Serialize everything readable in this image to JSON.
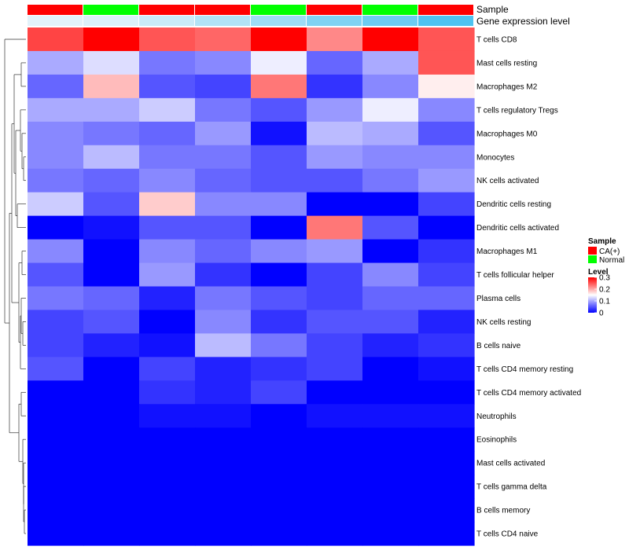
{
  "chart_data": {
    "type": "heatmap",
    "column_annotations": [
      {
        "name": "Sample",
        "values": [
          "CA(+)",
          "Normal",
          "CA(+)",
          "CA(+)",
          "Normal",
          "CA(+)",
          "Normal",
          "CA(+)"
        ]
      },
      {
        "name": "Gene expression level",
        "values": [
          0.02,
          0.05,
          0.12,
          0.22,
          0.3,
          0.42,
          0.5,
          0.62
        ]
      }
    ],
    "rows": [
      "T cells CD8",
      "Mast cells resting",
      "Macrophages M2",
      "T cells regulatory  Tregs",
      "Macrophages M0",
      "Monocytes",
      "NK cells activated",
      "Dendritic cells resting",
      "Dendritic cells activated",
      "Macrophages M1",
      "T cells follicular helper",
      "Plasma cells",
      "NK cells resting",
      "B cells naive",
      "T cells CD4 memory resting",
      "T cells CD4 memory activated",
      "Neutrophils",
      "Eosinophils",
      "Mast cells activated",
      "T cells gamma delta",
      "B cells memory",
      "T cells CD4 naive"
    ],
    "values": [
      [
        0.26,
        0.3,
        0.25,
        0.24,
        0.3,
        0.22,
        0.3,
        0.25
      ],
      [
        0.1,
        0.13,
        0.07,
        0.08,
        0.14,
        0.06,
        0.1,
        0.25
      ],
      [
        0.06,
        0.19,
        0.05,
        0.04,
        0.23,
        0.03,
        0.08,
        0.16
      ],
      [
        0.1,
        0.1,
        0.12,
        0.07,
        0.05,
        0.09,
        0.14,
        0.08
      ],
      [
        0.08,
        0.07,
        0.06,
        0.09,
        0.01,
        0.11,
        0.1,
        0.05
      ],
      [
        0.08,
        0.11,
        0.07,
        0.07,
        0.05,
        0.09,
        0.08,
        0.08
      ],
      [
        0.07,
        0.06,
        0.08,
        0.06,
        0.05,
        0.05,
        0.07,
        0.09
      ],
      [
        0.12,
        0.05,
        0.18,
        0.08,
        0.08,
        0.0,
        0.0,
        0.04
      ],
      [
        0.0,
        0.01,
        0.05,
        0.05,
        0.0,
        0.23,
        0.05,
        0.0
      ],
      [
        0.08,
        0.0,
        0.08,
        0.06,
        0.08,
        0.09,
        0.0,
        0.03
      ],
      [
        0.05,
        0.0,
        0.09,
        0.03,
        0.0,
        0.04,
        0.08,
        0.04
      ],
      [
        0.07,
        0.06,
        0.02,
        0.07,
        0.05,
        0.04,
        0.06,
        0.06
      ],
      [
        0.04,
        0.05,
        0.0,
        0.08,
        0.03,
        0.05,
        0.05,
        0.02
      ],
      [
        0.04,
        0.02,
        0.01,
        0.11,
        0.07,
        0.04,
        0.02,
        0.03
      ],
      [
        0.05,
        0.0,
        0.04,
        0.02,
        0.03,
        0.04,
        0.0,
        0.01
      ],
      [
        0.0,
        0.0,
        0.03,
        0.02,
        0.04,
        0.0,
        0.0,
        0.0
      ],
      [
        0.0,
        0.0,
        0.01,
        0.01,
        0.0,
        0.01,
        0.01,
        0.01
      ],
      [
        0.0,
        0.0,
        0.0,
        0.0,
        0.0,
        0.0,
        0.0,
        0.0
      ],
      [
        0.0,
        0.0,
        0.0,
        0.0,
        0.0,
        0.0,
        0.0,
        0.0
      ],
      [
        0.0,
        0.0,
        0.0,
        0.0,
        0.0,
        0.0,
        0.0,
        0.0
      ],
      [
        0.0,
        0.0,
        0.0,
        0.0,
        0.0,
        0.0,
        0.0,
        0.0
      ],
      [
        0.0,
        0.0,
        0.0,
        0.0,
        0.0,
        0.0,
        0.0,
        0.0
      ]
    ],
    "color_scale": {
      "min": 0,
      "max": 0.3,
      "stops": [
        "#0000ff",
        "#ffffff",
        "#ff0000"
      ],
      "ticks": [
        0,
        0.1,
        0.2,
        0.3
      ]
    },
    "row_dendrogram": true,
    "legends": {
      "sample": {
        "title": "Sample",
        "items": [
          {
            "label": "CA(+)",
            "color": "#ff0000"
          },
          {
            "label": "Normal",
            "color": "#00ff00"
          }
        ]
      },
      "level": {
        "title": "Level",
        "tick_labels": [
          "0",
          "0.1",
          "0.2",
          "0.3"
        ]
      }
    },
    "annotation_colors": {
      "CA(+)": "#ff0000",
      "Normal": "#00ff00",
      "gene_low": "#e8f4fa",
      "gene_high": "#4fc3f0"
    },
    "grid": false,
    "legend_position": "right"
  }
}
